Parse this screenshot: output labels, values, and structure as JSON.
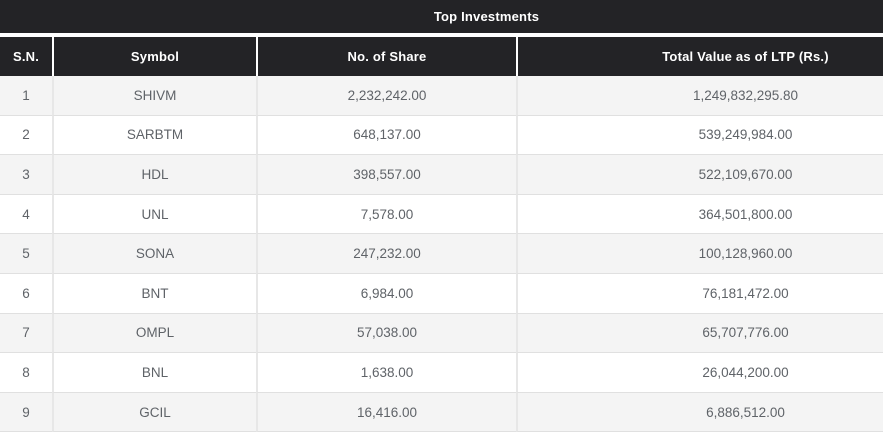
{
  "title": "Top Investments",
  "theme": {
    "header_bg": "#232326",
    "header_text": "#ffffff",
    "row_alt_bg": "#f4f4f4",
    "row_bg": "#ffffff",
    "cell_text": "#5f6368",
    "border_color": "#e0e0e0"
  },
  "table": {
    "columns": [
      "S.N.",
      "Symbol",
      "No. of Share",
      "Total Value as of LTP (Rs.)"
    ],
    "rows": [
      {
        "sn": "1",
        "symbol": "SHIVM",
        "shares": "2,232,242.00",
        "total_value": "1,249,832,295.80"
      },
      {
        "sn": "2",
        "symbol": "SARBTM",
        "shares": "648,137.00",
        "total_value": "539,249,984.00"
      },
      {
        "sn": "3",
        "symbol": "HDL",
        "shares": "398,557.00",
        "total_value": "522,109,670.00"
      },
      {
        "sn": "4",
        "symbol": "UNL",
        "shares": "7,578.00",
        "total_value": "364,501,800.00"
      },
      {
        "sn": "5",
        "symbol": "SONA",
        "shares": "247,232.00",
        "total_value": "100,128,960.00"
      },
      {
        "sn": "6",
        "symbol": "BNT",
        "shares": "6,984.00",
        "total_value": "76,181,472.00"
      },
      {
        "sn": "7",
        "symbol": "OMPL",
        "shares": "57,038.00",
        "total_value": "65,707,776.00"
      },
      {
        "sn": "8",
        "symbol": "BNL",
        "shares": "1,638.00",
        "total_value": "26,044,200.00"
      },
      {
        "sn": "9",
        "symbol": "GCIL",
        "shares": "16,416.00",
        "total_value": "6,886,512.00"
      }
    ]
  }
}
